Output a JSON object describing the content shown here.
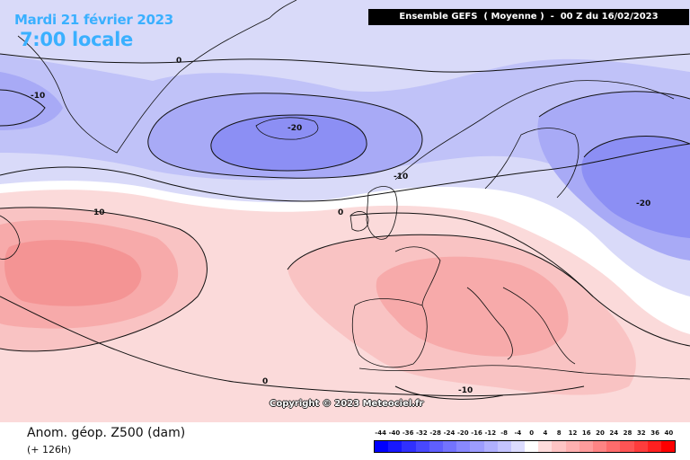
{
  "header": {
    "date": "Mardi 21 février 2023",
    "time": "7:00 locale",
    "model": "Ensemble GEFS  ( Moyenne )  -  00 Z du 16/02/2023"
  },
  "map": {
    "contour_labels": [
      "0",
      "-10",
      "-20",
      "-10",
      "0",
      "10",
      "-20",
      "0",
      "-10"
    ],
    "colors": {
      "neg_20": "#6b6ff0",
      "neg_16": "#8c8ff4",
      "neg_12": "#a8aaf6",
      "neg_8": "#c0c2f8",
      "neg_4": "#d9daf9",
      "zero": "#ffffff",
      "pos_4": "#fbdada",
      "pos_8": "#f9c3c3",
      "pos_12": "#f7aaaa",
      "pos_16": "#f49494"
    }
  },
  "copyright": "Copyright © 2023 Meteociel.fr",
  "footer": {
    "variable": "Anom. géop. Z500 (dam)",
    "lead_time": "(+ 126h)"
  },
  "legend": {
    "labels": [
      "-44",
      "-40",
      "-36",
      "-32",
      "-28",
      "-24",
      "-20",
      "-16",
      "-12",
      "-8",
      "-4",
      "0",
      "4",
      "8",
      "12",
      "16",
      "20",
      "24",
      "28",
      "32",
      "36",
      "40"
    ],
    "colors": [
      "#0000ff",
      "#1818ff",
      "#3030ff",
      "#4848ff",
      "#5f5fff",
      "#7373ff",
      "#8888ff",
      "#9c9cff",
      "#b0b0ff",
      "#c4c4ff",
      "#dcdcff",
      "#ffffff",
      "#ffdcdc",
      "#ffc4c4",
      "#ffb0b0",
      "#ff9c9c",
      "#ff8484",
      "#ff6c6c",
      "#ff5454",
      "#ff3c3c",
      "#ff2020",
      "#ff0000"
    ]
  }
}
